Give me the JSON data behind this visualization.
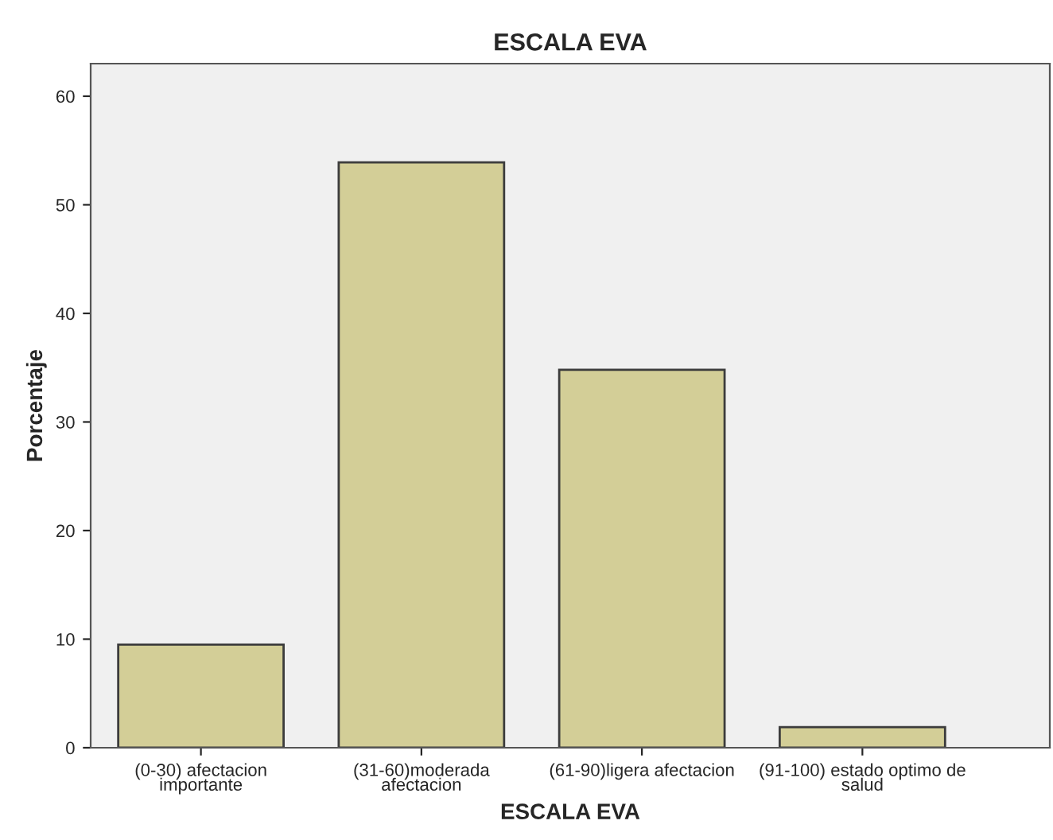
{
  "chart_data": {
    "type": "bar",
    "title": "ESCALA EVA",
    "xlabel": "ESCALA EVA",
    "ylabel": "Porcentaje",
    "categories": [
      "(0-30) afectacion\nimportante",
      "(31-60)moderada\nafectacion",
      "(61-90)ligera afectacion",
      "(91-100) estado optimo de\nsalud"
    ],
    "values": [
      9.5,
      53.9,
      34.8,
      1.9
    ],
    "color": "#d3ce97",
    "ylim": [
      0,
      63
    ],
    "yticks": [
      0,
      10,
      20,
      30,
      40,
      50,
      60
    ],
    "grid": false
  }
}
